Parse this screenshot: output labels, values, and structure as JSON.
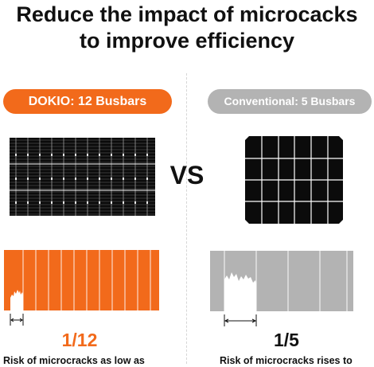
{
  "headline": {
    "line1": "Reduce the impact of microcacks",
    "line2": "to improve efficiency"
  },
  "left": {
    "label": "DOKIO: 12 Busbars",
    "busbars": 12,
    "fraction": "1/12",
    "caption": "Risk of microcracks as low as",
    "accent_color": "#f26a1b"
  },
  "vs_label": "VS",
  "right": {
    "label": "Conventional: 5 Busbars",
    "busbars": 5,
    "fraction": "1/5",
    "caption": "Risk of microcracks rises to",
    "accent_color": "#b3b3b3"
  }
}
